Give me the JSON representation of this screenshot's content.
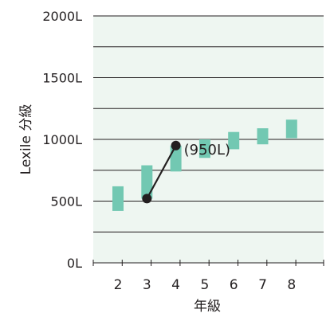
{
  "chart_data": {
    "type": "range-bar",
    "title": "",
    "xlabel": "年級",
    "ylabel": "Lexile 分級",
    "ylim": [
      0,
      2000
    ],
    "y_ticks": [
      "0L",
      "500L",
      "1000L",
      "1500L",
      "2000L"
    ],
    "y_tick_values": [
      0,
      500,
      1000,
      1500,
      2000
    ],
    "grid": true,
    "categories": [
      "2",
      "3",
      "4",
      "5",
      "6",
      "7",
      "8"
    ],
    "ranges": [
      {
        "grade": "2",
        "low": 420,
        "high": 620
      },
      {
        "grade": "3",
        "low": 520,
        "high": 790
      },
      {
        "grade": "4",
        "low": 740,
        "high": 950
      },
      {
        "grade": "5",
        "low": 850,
        "high": 1000
      },
      {
        "grade": "6",
        "low": 920,
        "high": 1060
      },
      {
        "grade": "7",
        "low": 960,
        "high": 1090
      },
      {
        "grade": "8",
        "low": 1010,
        "high": 1160
      }
    ],
    "highlight_line": {
      "points": [
        {
          "grade": "3",
          "value": 520
        },
        {
          "grade": "4",
          "value": 950
        }
      ],
      "annotation": "(950L)"
    },
    "colors": {
      "plot_background": "#eef6f1",
      "bar": "#72c8b2",
      "grid": "#231f20",
      "marker": "#231f20"
    }
  }
}
